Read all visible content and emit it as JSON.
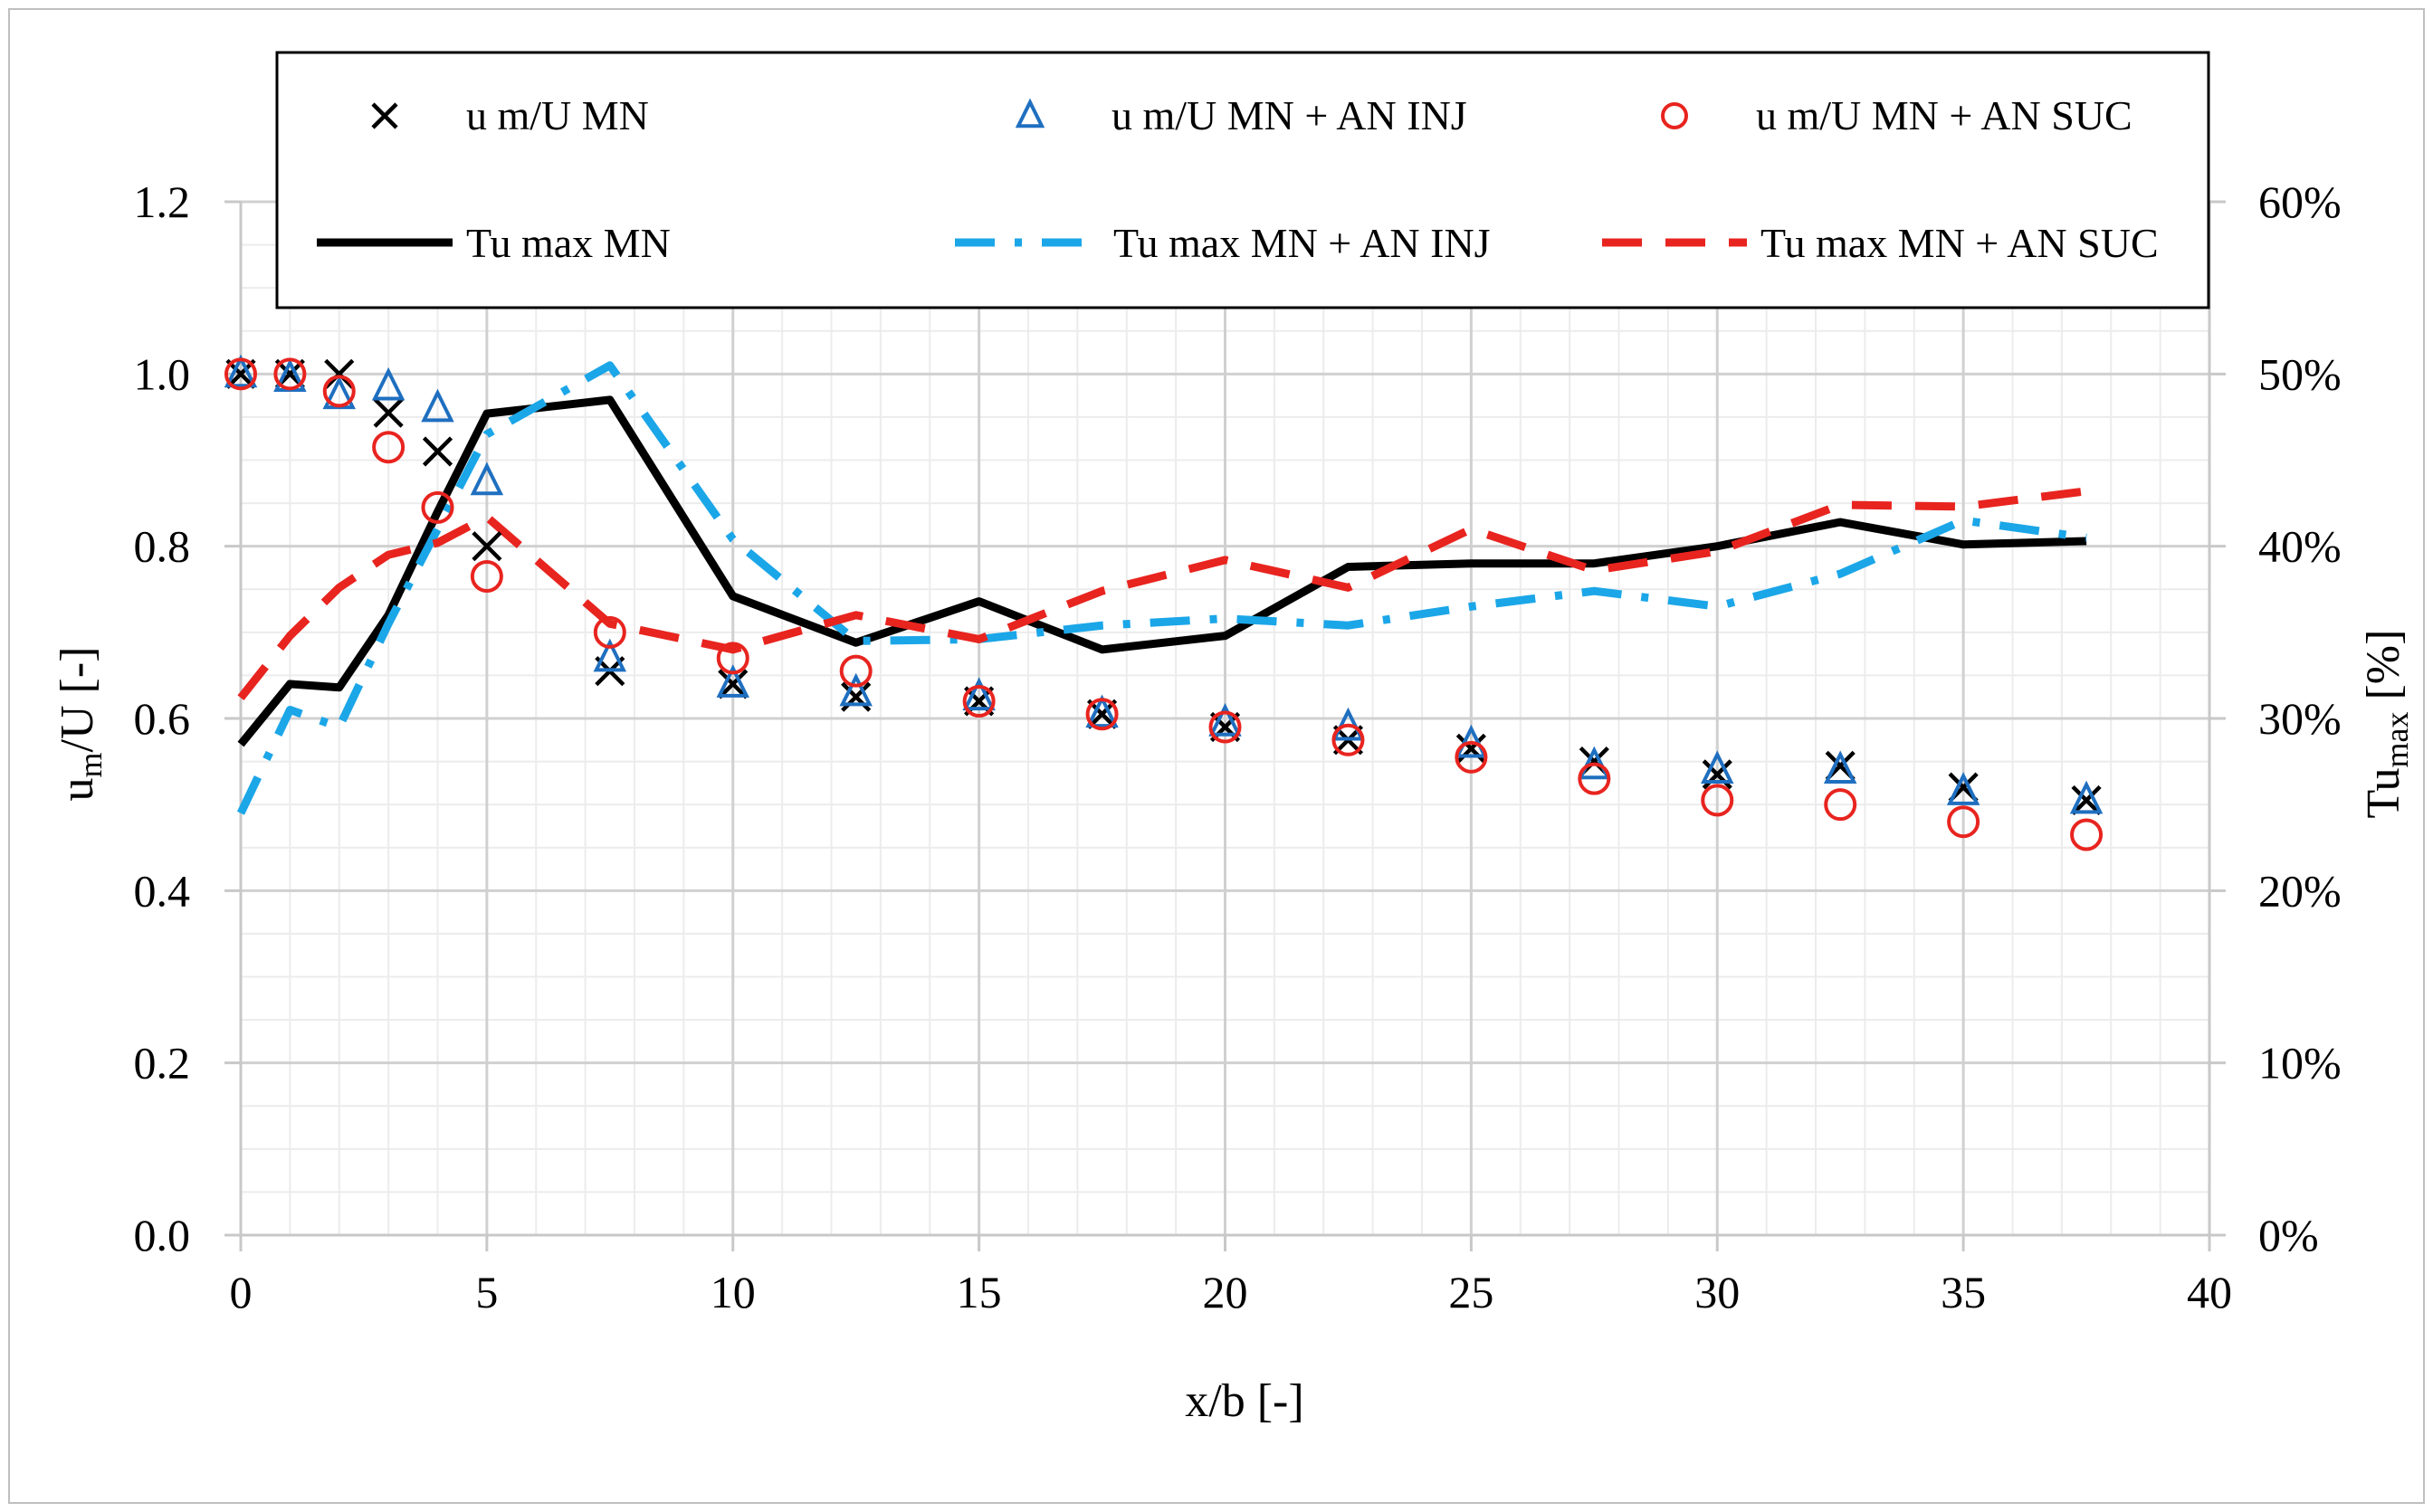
{
  "chart_data": {
    "type": "line",
    "title": "",
    "xlabel": "x/b [-]",
    "ylabel_main": "u",
    "ylabel_sub": "m",
    "ylabel_rest": "/U [-]",
    "y2label_main": "Tu",
    "y2label_sub": "max",
    "y2label_rest": " [%]",
    "xlim": [
      0,
      40
    ],
    "ylim": [
      0,
      1.2
    ],
    "y2lim": [
      0,
      60
    ],
    "x_ticks": [
      0,
      5,
      10,
      15,
      20,
      25,
      30,
      35,
      40
    ],
    "x_tick_labels": [
      "0",
      "5",
      "10",
      "15",
      "20",
      "25",
      "30",
      "35",
      "40"
    ],
    "y_ticks": [
      0,
      0.2,
      0.4,
      0.6,
      0.8,
      1.0,
      1.2
    ],
    "y_tick_labels": [
      "0.0",
      "0.2",
      "0.4",
      "0.6",
      "0.8",
      "1.0",
      "1.2"
    ],
    "y2_ticks": [
      0,
      10,
      20,
      30,
      40,
      50,
      60
    ],
    "y2_tick_labels": [
      "0%",
      "10%",
      "20%",
      "30%",
      "40%",
      "50%",
      "60%"
    ],
    "grid": true,
    "legend_position": "top",
    "series": [
      {
        "name": "u m/U MN",
        "kind": "scatter",
        "marker": "x",
        "color": "#000000",
        "axis": "left",
        "x": [
          0,
          1,
          2,
          3,
          4,
          5,
          7.5,
          10,
          12.5,
          15,
          17.5,
          20,
          22.5,
          25,
          27.5,
          30,
          32.5,
          35,
          37.5
        ],
        "y": [
          1.0,
          1.0,
          1.0,
          0.955,
          0.91,
          0.8,
          0.655,
          0.64,
          0.625,
          0.62,
          0.605,
          0.59,
          0.575,
          0.565,
          0.55,
          0.535,
          0.545,
          0.52,
          0.505
        ]
      },
      {
        "name": "u m/U MN + AN INJ",
        "kind": "scatter",
        "marker": "triangle",
        "color": "#1f6fc0",
        "axis": "left",
        "x": [
          0,
          1,
          2,
          3,
          4,
          5,
          7.5,
          10,
          12.5,
          15,
          17.5,
          20,
          22.5,
          25,
          27.5,
          30,
          32.5,
          35,
          37.5
        ],
        "y": [
          1.0,
          0.995,
          0.975,
          0.985,
          0.96,
          0.875,
          0.67,
          0.64,
          0.63,
          0.625,
          0.605,
          0.595,
          0.59,
          0.57,
          0.545,
          0.54,
          0.54,
          0.515,
          0.505
        ]
      },
      {
        "name": "u m/U MN + AN SUC",
        "kind": "scatter",
        "marker": "circle",
        "color": "#e8241f",
        "axis": "left",
        "x": [
          0,
          1,
          2,
          3,
          4,
          5,
          7.5,
          10,
          12.5,
          15,
          17.5,
          20,
          22.5,
          25,
          27.5,
          30,
          32.5,
          35,
          37.5
        ],
        "y": [
          1.0,
          1.0,
          0.98,
          0.915,
          0.845,
          0.765,
          0.7,
          0.67,
          0.655,
          0.62,
          0.605,
          0.59,
          0.575,
          0.555,
          0.53,
          0.505,
          0.5,
          0.48,
          0.465
        ]
      },
      {
        "name": "Tu max MN",
        "kind": "line",
        "dash": "solid",
        "color": "#000000",
        "axis": "right",
        "x": [
          0,
          1,
          2,
          3,
          4,
          5,
          7.5,
          10,
          12.5,
          15,
          17.5,
          20,
          22.5,
          25,
          27.5,
          30,
          32.5,
          35,
          37.5
        ],
        "y": [
          28.5,
          32,
          31.8,
          36,
          42,
          47.7,
          48.5,
          37.1,
          34.4,
          36.8,
          34,
          34.8,
          38.8,
          39,
          39,
          40,
          41.4,
          40.1,
          40.3
        ]
      },
      {
        "name": "Tu max MN + AN INJ",
        "kind": "line",
        "dash": "dashdot",
        "color": "#1ba6e8",
        "axis": "right",
        "x": [
          0,
          1,
          2,
          3,
          4,
          5,
          7.5,
          10,
          12.5,
          15,
          17.5,
          20,
          22.5,
          25,
          27.5,
          30,
          32.5,
          35,
          37.5
        ],
        "y": [
          24.5,
          30.5,
          29.5,
          35.5,
          41,
          46.5,
          50.5,
          40.4,
          34.5,
          34.6,
          35.4,
          35.8,
          35.4,
          36.5,
          37.4,
          36.5,
          38.4,
          41.5,
          40.5
        ]
      },
      {
        "name": "Tu max MN + AN SUC",
        "kind": "line",
        "dash": "dashed",
        "color": "#e8241f",
        "axis": "right",
        "x": [
          0,
          1,
          2,
          3,
          4,
          5,
          7.5,
          10,
          12.5,
          15,
          17.5,
          20,
          22.5,
          25,
          27.5,
          30,
          32.5,
          35,
          37.5
        ],
        "y": [
          31.2,
          34.8,
          37.6,
          39.5,
          40.2,
          41.7,
          35.5,
          34,
          36,
          34.6,
          37.4,
          39.2,
          37.6,
          41,
          38.6,
          39.7,
          42.4,
          42.3,
          43.2
        ]
      }
    ]
  }
}
